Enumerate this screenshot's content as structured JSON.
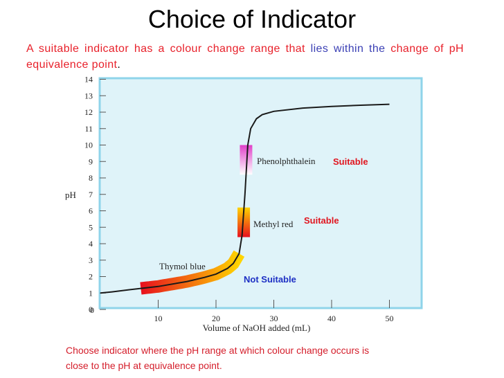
{
  "slide": {
    "title": "Choice of Indicator",
    "intro": {
      "part1": "A suitable indicator has a colour change range that",
      "part2": "lies within the",
      "part3": "change of pH equivalence point",
      "part4": "."
    },
    "footnote": {
      "line1": "Choose indicator where the pH range at which colour change occurs is",
      "line2": "close to the pH at equivalence point."
    }
  },
  "colors": {
    "plot_background": "#dff3f9",
    "plot_border": "#8fd4ea",
    "curve": "#1a1a1a",
    "suitable_label": "#e0151f",
    "not_suitable_label": "#1d2fc4"
  },
  "chart_data": {
    "type": "line",
    "xlabel": "Volume of NaOH added (mL)",
    "ylabel": "pH",
    "xlim": [
      0,
      55
    ],
    "ylim": [
      0,
      14
    ],
    "xticks": [
      10,
      20,
      30,
      40,
      50
    ],
    "yticks": [
      0,
      1,
      2,
      3,
      4,
      5,
      6,
      7,
      8,
      9,
      10,
      11,
      12,
      13,
      14
    ],
    "series": [
      {
        "x": [
          0,
          2,
          5,
          10,
          15,
          18,
          20,
          22,
          23,
          24,
          24.5,
          25,
          25.5,
          26,
          27,
          28,
          30,
          35,
          40,
          45,
          50
        ],
        "y": [
          1.0,
          1.07,
          1.2,
          1.4,
          1.7,
          1.95,
          2.15,
          2.5,
          2.8,
          3.4,
          4.5,
          7.0,
          10.0,
          11.0,
          11.6,
          11.85,
          12.05,
          12.25,
          12.35,
          12.42,
          12.48
        ]
      }
    ],
    "indicators": [
      {
        "name": "Phenolphthalein",
        "x": 25.2,
        "pH_range": [
          8.2,
          10.0
        ],
        "verdict": "Suitable",
        "colors": [
          "#ffffff",
          "#e040c8"
        ]
      },
      {
        "name": "Methyl red",
        "x": 24.8,
        "pH_range": [
          4.4,
          6.2
        ],
        "verdict": "Suitable",
        "colors": [
          "#e8101e",
          "#ffd400"
        ]
      },
      {
        "name": "Thymol blue",
        "verdict": "Not Suitable",
        "pH_range": [
          1.2,
          2.8
        ],
        "x_span": [
          7,
          24
        ],
        "colors": [
          "#e8101e",
          "#ffd400"
        ]
      }
    ]
  }
}
